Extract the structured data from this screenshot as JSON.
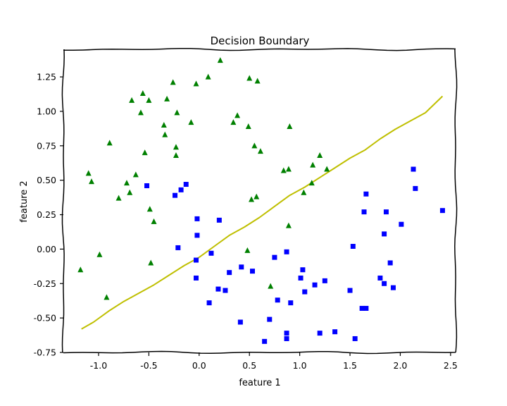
{
  "chart_data": {
    "type": "scatter",
    "title": "Decision Boundary",
    "xlabel": "feature 1",
    "ylabel": "feature 2",
    "xlim": [
      -1.35,
      2.55
    ],
    "ylim": [
      -0.75,
      1.45
    ],
    "grid": false,
    "x_ticks": [
      -1.0,
      -0.5,
      0.0,
      0.5,
      1.0,
      1.5,
      2.0,
      2.5
    ],
    "x_tick_labels": [
      "-1.0",
      "-0.5",
      "0.0",
      "0.5",
      "1.0",
      "1.5",
      "2.0",
      "2.5"
    ],
    "y_ticks": [
      -0.75,
      -0.5,
      -0.25,
      0.0,
      0.25,
      0.5,
      0.75,
      1.0,
      1.25
    ],
    "y_tick_labels": [
      "-0.75",
      "-0.50",
      "-0.25",
      "0.00",
      "0.25",
      "0.50",
      "0.75",
      "1.00",
      "1.25"
    ],
    "series": [
      {
        "marker": "triangle",
        "color": "#008000",
        "points": [
          [
            0.21,
            1.37
          ],
          [
            0.09,
            1.25
          ],
          [
            -0.03,
            1.2
          ],
          [
            -0.26,
            1.21
          ],
          [
            0.5,
            1.24
          ],
          [
            0.58,
            1.22
          ],
          [
            -0.56,
            1.13
          ],
          [
            -0.67,
            1.08
          ],
          [
            -0.5,
            1.08
          ],
          [
            -0.32,
            1.09
          ],
          [
            -0.22,
            0.99
          ],
          [
            -0.58,
            0.99
          ],
          [
            0.38,
            0.97
          ],
          [
            0.34,
            0.92
          ],
          [
            0.49,
            0.89
          ],
          [
            0.9,
            0.89
          ],
          [
            -0.08,
            0.92
          ],
          [
            -0.35,
            0.9
          ],
          [
            -0.34,
            0.83
          ],
          [
            -0.23,
            0.74
          ],
          [
            -0.23,
            0.68
          ],
          [
            -0.54,
            0.7
          ],
          [
            -0.89,
            0.77
          ],
          [
            0.55,
            0.75
          ],
          [
            0.61,
            0.71
          ],
          [
            1.2,
            0.68
          ],
          [
            1.13,
            0.61
          ],
          [
            1.27,
            0.58
          ],
          [
            0.89,
            0.58
          ],
          [
            0.84,
            0.57
          ],
          [
            -1.1,
            0.55
          ],
          [
            -1.07,
            0.49
          ],
          [
            -0.72,
            0.48
          ],
          [
            -0.63,
            0.54
          ],
          [
            -0.69,
            0.41
          ],
          [
            -0.8,
            0.37
          ],
          [
            1.12,
            0.48
          ],
          [
            1.04,
            0.41
          ],
          [
            0.57,
            0.38
          ],
          [
            0.52,
            0.36
          ],
          [
            -0.49,
            0.29
          ],
          [
            -0.45,
            0.2
          ],
          [
            0.89,
            0.17
          ],
          [
            0.48,
            -0.01
          ],
          [
            -0.99,
            -0.04
          ],
          [
            -0.48,
            -0.1
          ],
          [
            -1.18,
            -0.15
          ],
          [
            0.71,
            -0.27
          ],
          [
            -0.92,
            -0.35
          ]
        ]
      },
      {
        "marker": "square",
        "color": "#0000ff",
        "points": [
          [
            2.13,
            0.58
          ],
          [
            2.15,
            0.44
          ],
          [
            1.66,
            0.4
          ],
          [
            -0.18,
            0.43
          ],
          [
            -0.13,
            0.47
          ],
          [
            -0.24,
            0.39
          ],
          [
            -0.52,
            0.46
          ],
          [
            1.64,
            0.27
          ],
          [
            1.86,
            0.27
          ],
          [
            2.42,
            0.28
          ],
          [
            -0.02,
            0.22
          ],
          [
            0.2,
            0.21
          ],
          [
            2.01,
            0.18
          ],
          [
            1.84,
            0.11
          ],
          [
            -0.02,
            0.1
          ],
          [
            1.53,
            0.02
          ],
          [
            -0.21,
            0.01
          ],
          [
            0.12,
            -0.03
          ],
          [
            0.87,
            -0.02
          ],
          [
            -0.03,
            -0.08
          ],
          [
            0.75,
            -0.06
          ],
          [
            1.9,
            -0.1
          ],
          [
            0.3,
            -0.17
          ],
          [
            0.42,
            -0.13
          ],
          [
            0.53,
            -0.16
          ],
          [
            1.03,
            -0.15
          ],
          [
            1.01,
            -0.21
          ],
          [
            1.8,
            -0.21
          ],
          [
            -0.03,
            -0.21
          ],
          [
            1.25,
            -0.23
          ],
          [
            1.84,
            -0.25
          ],
          [
            1.93,
            -0.28
          ],
          [
            0.19,
            -0.29
          ],
          [
            0.26,
            -0.3
          ],
          [
            1.05,
            -0.31
          ],
          [
            1.15,
            -0.26
          ],
          [
            1.5,
            -0.3
          ],
          [
            0.78,
            -0.37
          ],
          [
            0.91,
            -0.39
          ],
          [
            0.1,
            -0.39
          ],
          [
            1.62,
            -0.43
          ],
          [
            1.66,
            -0.43
          ],
          [
            0.41,
            -0.53
          ],
          [
            0.7,
            -0.51
          ],
          [
            1.2,
            -0.61
          ],
          [
            1.35,
            -0.6
          ],
          [
            0.87,
            -0.61
          ],
          [
            1.55,
            -0.65
          ],
          [
            0.65,
            -0.67
          ],
          [
            0.87,
            -0.65
          ]
        ]
      }
    ],
    "boundary": {
      "type": "line",
      "color": "#bfbf00",
      "points": [
        [
          -1.17,
          -0.58
        ],
        [
          -1.05,
          -0.53
        ],
        [
          -0.9,
          -0.45
        ],
        [
          -0.75,
          -0.38
        ],
        [
          -0.6,
          -0.32
        ],
        [
          -0.45,
          -0.26
        ],
        [
          -0.3,
          -0.19
        ],
        [
          -0.15,
          -0.12
        ],
        [
          0.0,
          -0.06
        ],
        [
          0.15,
          0.02
        ],
        [
          0.3,
          0.1
        ],
        [
          0.45,
          0.16
        ],
        [
          0.6,
          0.23
        ],
        [
          0.75,
          0.31
        ],
        [
          0.9,
          0.39
        ],
        [
          1.05,
          0.45
        ],
        [
          1.2,
          0.52
        ],
        [
          1.35,
          0.59
        ],
        [
          1.5,
          0.66
        ],
        [
          1.65,
          0.72
        ],
        [
          1.8,
          0.8
        ],
        [
          1.95,
          0.87
        ],
        [
          2.1,
          0.93
        ],
        [
          2.25,
          0.99
        ],
        [
          2.42,
          1.11
        ]
      ]
    }
  }
}
